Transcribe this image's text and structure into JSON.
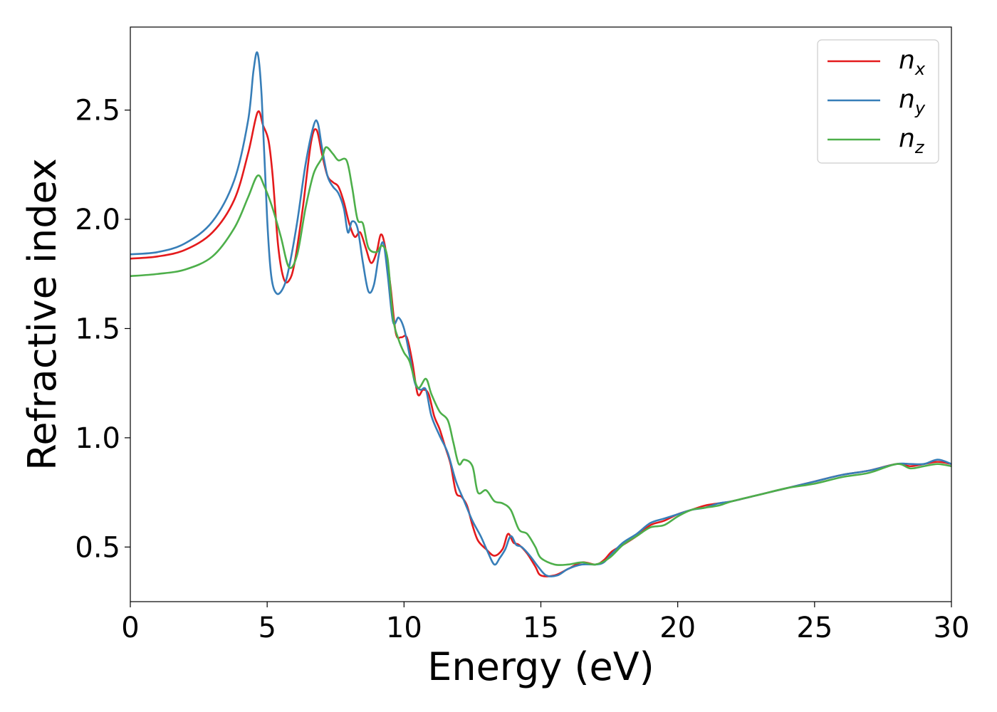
{
  "chart_data": {
    "type": "line",
    "xlabel": "Energy (eV)",
    "ylabel": "Refractive index",
    "xlim": [
      0,
      30
    ],
    "ylim": [
      0.25,
      2.88
    ],
    "xticks": [
      "0",
      "5",
      "10",
      "15",
      "20",
      "25",
      "30"
    ],
    "yticks": [
      "0.5",
      "1.0",
      "1.5",
      "2.0",
      "2.5"
    ],
    "grid": false,
    "legend_position": "top-right",
    "series": [
      {
        "name": "n_x",
        "legend_base": "n",
        "legend_sub": "x",
        "color": "#e41a1c",
        "points": [
          [
            0,
            1.82
          ],
          [
            1,
            1.83
          ],
          [
            2,
            1.86
          ],
          [
            3,
            1.94
          ],
          [
            3.8,
            2.09
          ],
          [
            4.3,
            2.3
          ],
          [
            4.65,
            2.49
          ],
          [
            4.85,
            2.43
          ],
          [
            5.05,
            2.36
          ],
          [
            5.2,
            2.2
          ],
          [
            5.4,
            1.88
          ],
          [
            5.6,
            1.73
          ],
          [
            5.8,
            1.72
          ],
          [
            6,
            1.8
          ],
          [
            6.3,
            2.05
          ],
          [
            6.6,
            2.35
          ],
          [
            6.8,
            2.41
          ],
          [
            7,
            2.3
          ],
          [
            7.2,
            2.2
          ],
          [
            7.4,
            2.17
          ],
          [
            7.6,
            2.15
          ],
          [
            7.8,
            2.08
          ],
          [
            8,
            1.98
          ],
          [
            8.2,
            1.92
          ],
          [
            8.4,
            1.94
          ],
          [
            8.6,
            1.87
          ],
          [
            8.8,
            1.8
          ],
          [
            9,
            1.85
          ],
          [
            9.15,
            1.93
          ],
          [
            9.3,
            1.88
          ],
          [
            9.5,
            1.7
          ],
          [
            9.7,
            1.48
          ],
          [
            9.9,
            1.46
          ],
          [
            10.1,
            1.46
          ],
          [
            10.3,
            1.35
          ],
          [
            10.5,
            1.2
          ],
          [
            10.7,
            1.22
          ],
          [
            10.9,
            1.2
          ],
          [
            11.1,
            1.1
          ],
          [
            11.3,
            1.04
          ],
          [
            11.5,
            0.96
          ],
          [
            11.7,
            0.88
          ],
          [
            11.9,
            0.75
          ],
          [
            12.1,
            0.73
          ],
          [
            12.3,
            0.69
          ],
          [
            12.5,
            0.6
          ],
          [
            12.7,
            0.53
          ],
          [
            13,
            0.49
          ],
          [
            13.3,
            0.46
          ],
          [
            13.6,
            0.49
          ],
          [
            13.8,
            0.56
          ],
          [
            14,
            0.52
          ],
          [
            14.2,
            0.51
          ],
          [
            14.5,
            0.47
          ],
          [
            14.8,
            0.41
          ],
          [
            15,
            0.37
          ],
          [
            15.5,
            0.37
          ],
          [
            16,
            0.4
          ],
          [
            16.5,
            0.43
          ],
          [
            17,
            0.42
          ],
          [
            17.3,
            0.44
          ],
          [
            17.6,
            0.48
          ],
          [
            18,
            0.51
          ],
          [
            18.5,
            0.55
          ],
          [
            19,
            0.6
          ],
          [
            19.5,
            0.62
          ],
          [
            20,
            0.65
          ],
          [
            20.5,
            0.67
          ],
          [
            21,
            0.69
          ],
          [
            21.5,
            0.7
          ],
          [
            22,
            0.71
          ],
          [
            23,
            0.74
          ],
          [
            24,
            0.77
          ],
          [
            25,
            0.8
          ],
          [
            26,
            0.83
          ],
          [
            27,
            0.85
          ],
          [
            28,
            0.88
          ],
          [
            28.5,
            0.87
          ],
          [
            29,
            0.88
          ],
          [
            29.5,
            0.89
          ],
          [
            30,
            0.88
          ]
        ]
      },
      {
        "name": "n_y",
        "legend_base": "n",
        "legend_sub": "y",
        "color": "#377eb8",
        "points": [
          [
            0,
            1.84
          ],
          [
            1,
            1.85
          ],
          [
            2,
            1.89
          ],
          [
            3,
            1.99
          ],
          [
            3.8,
            2.18
          ],
          [
            4.3,
            2.45
          ],
          [
            4.5,
            2.68
          ],
          [
            4.65,
            2.76
          ],
          [
            4.8,
            2.56
          ],
          [
            5,
            2.0
          ],
          [
            5.15,
            1.74
          ],
          [
            5.35,
            1.66
          ],
          [
            5.6,
            1.69
          ],
          [
            5.8,
            1.78
          ],
          [
            6.1,
            1.99
          ],
          [
            6.4,
            2.25
          ],
          [
            6.7,
            2.43
          ],
          [
            6.85,
            2.44
          ],
          [
            7,
            2.33
          ],
          [
            7.2,
            2.2
          ],
          [
            7.4,
            2.15
          ],
          [
            7.6,
            2.12
          ],
          [
            7.8,
            2.05
          ],
          [
            7.95,
            1.94
          ],
          [
            8.1,
            1.99
          ],
          [
            8.3,
            1.96
          ],
          [
            8.5,
            1.8
          ],
          [
            8.7,
            1.67
          ],
          [
            8.9,
            1.7
          ],
          [
            9.1,
            1.85
          ],
          [
            9.25,
            1.89
          ],
          [
            9.4,
            1.75
          ],
          [
            9.6,
            1.53
          ],
          [
            9.8,
            1.55
          ],
          [
            10,
            1.5
          ],
          [
            10.2,
            1.38
          ],
          [
            10.4,
            1.25
          ],
          [
            10.6,
            1.22
          ],
          [
            10.8,
            1.22
          ],
          [
            11,
            1.1
          ],
          [
            11.3,
            1.01
          ],
          [
            11.6,
            0.93
          ],
          [
            11.9,
            0.8
          ],
          [
            12.2,
            0.71
          ],
          [
            12.5,
            0.62
          ],
          [
            12.8,
            0.55
          ],
          [
            13.05,
            0.48
          ],
          [
            13.3,
            0.42
          ],
          [
            13.5,
            0.45
          ],
          [
            13.7,
            0.49
          ],
          [
            13.9,
            0.55
          ],
          [
            14.1,
            0.51
          ],
          [
            14.3,
            0.5
          ],
          [
            14.6,
            0.46
          ],
          [
            14.9,
            0.41
          ],
          [
            15.2,
            0.37
          ],
          [
            15.6,
            0.37
          ],
          [
            16,
            0.4
          ],
          [
            16.5,
            0.42
          ],
          [
            17,
            0.42
          ],
          [
            17.3,
            0.43
          ],
          [
            17.6,
            0.47
          ],
          [
            18,
            0.52
          ],
          [
            18.5,
            0.56
          ],
          [
            19,
            0.61
          ],
          [
            19.5,
            0.63
          ],
          [
            20,
            0.65
          ],
          [
            20.5,
            0.67
          ],
          [
            21,
            0.68
          ],
          [
            21.5,
            0.7
          ],
          [
            22,
            0.71
          ],
          [
            23,
            0.74
          ],
          [
            24,
            0.77
          ],
          [
            25,
            0.8
          ],
          [
            26,
            0.83
          ],
          [
            27,
            0.85
          ],
          [
            28,
            0.88
          ],
          [
            28.5,
            0.88
          ],
          [
            29,
            0.88
          ],
          [
            29.5,
            0.9
          ],
          [
            30,
            0.88
          ]
        ]
      },
      {
        "name": "n_z",
        "legend_base": "n",
        "legend_sub": "z",
        "color": "#4daf4a",
        "points": [
          [
            0,
            1.74
          ],
          [
            1,
            1.75
          ],
          [
            2,
            1.77
          ],
          [
            3,
            1.83
          ],
          [
            3.8,
            1.96
          ],
          [
            4.3,
            2.1
          ],
          [
            4.65,
            2.2
          ],
          [
            4.9,
            2.15
          ],
          [
            5.2,
            2.05
          ],
          [
            5.5,
            1.92
          ],
          [
            5.8,
            1.78
          ],
          [
            6.1,
            1.84
          ],
          [
            6.4,
            2.05
          ],
          [
            6.7,
            2.21
          ],
          [
            7,
            2.28
          ],
          [
            7.15,
            2.33
          ],
          [
            7.4,
            2.3
          ],
          [
            7.6,
            2.27
          ],
          [
            7.9,
            2.27
          ],
          [
            8.1,
            2.15
          ],
          [
            8.3,
            2.0
          ],
          [
            8.5,
            1.98
          ],
          [
            8.7,
            1.87
          ],
          [
            9,
            1.85
          ],
          [
            9.2,
            1.88
          ],
          [
            9.4,
            1.82
          ],
          [
            9.6,
            1.55
          ],
          [
            9.8,
            1.45
          ],
          [
            10,
            1.39
          ],
          [
            10.2,
            1.35
          ],
          [
            10.5,
            1.23
          ],
          [
            10.8,
            1.27
          ],
          [
            11,
            1.2
          ],
          [
            11.3,
            1.12
          ],
          [
            11.6,
            1.08
          ],
          [
            11.8,
            0.98
          ],
          [
            12,
            0.88
          ],
          [
            12.2,
            0.9
          ],
          [
            12.5,
            0.87
          ],
          [
            12.7,
            0.75
          ],
          [
            13,
            0.76
          ],
          [
            13.3,
            0.71
          ],
          [
            13.6,
            0.7
          ],
          [
            13.9,
            0.67
          ],
          [
            14.2,
            0.58
          ],
          [
            14.5,
            0.56
          ],
          [
            14.8,
            0.5
          ],
          [
            15,
            0.45
          ],
          [
            15.5,
            0.42
          ],
          [
            16,
            0.42
          ],
          [
            16.5,
            0.43
          ],
          [
            17,
            0.42
          ],
          [
            17.5,
            0.45
          ],
          [
            18,
            0.51
          ],
          [
            18.5,
            0.55
          ],
          [
            19,
            0.59
          ],
          [
            19.5,
            0.6
          ],
          [
            20,
            0.64
          ],
          [
            20.5,
            0.67
          ],
          [
            21,
            0.68
          ],
          [
            21.5,
            0.69
          ],
          [
            22,
            0.71
          ],
          [
            23,
            0.74
          ],
          [
            24,
            0.77
          ],
          [
            25,
            0.79
          ],
          [
            26,
            0.82
          ],
          [
            27,
            0.84
          ],
          [
            28,
            0.88
          ],
          [
            28.5,
            0.86
          ],
          [
            29,
            0.87
          ],
          [
            29.5,
            0.88
          ],
          [
            30,
            0.87
          ]
        ]
      }
    ]
  }
}
